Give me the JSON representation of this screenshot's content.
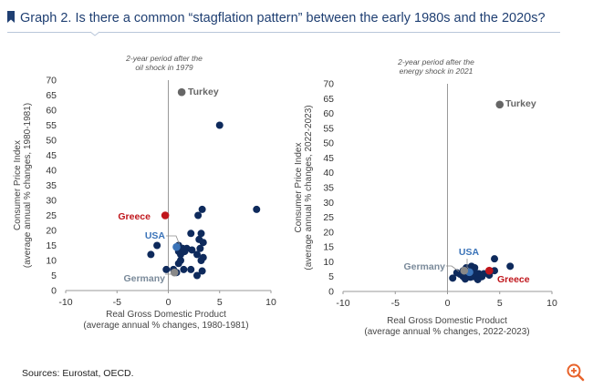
{
  "header": {
    "title": "Graph 2. Is there a common “stagflation pattern” between the early 1980s and the 2020s?",
    "accent_color": "#1f3f72"
  },
  "source": "Sources: Eurostat, OECD.",
  "zoom_icon": "zoom-in-icon",
  "colors": {
    "dot": "#0e2a5c",
    "usa": "#3a73b8",
    "greece": "#c0161c",
    "highlight_grey": "#6b6b6b",
    "axis": "#999999"
  },
  "chart_data": [
    {
      "type": "scatter",
      "annotation": [
        "2-year period after the",
        "oil shock in 1979"
      ],
      "ylabel": [
        "Consumer Price Index",
        "(average annual % changes, 1980-1981)"
      ],
      "xlabel": [
        "Real Gross Domestic Product",
        "(average annual % changes, 1980-1981)"
      ],
      "xlim": [
        -10,
        10
      ],
      "ylim": [
        0,
        70
      ],
      "xticks": [
        "-10",
        "-5",
        "0",
        "5",
        "10"
      ],
      "yticks": [
        "0",
        "5",
        "10",
        "15",
        "20",
        "25",
        "30",
        "35",
        "40",
        "45",
        "50",
        "55",
        "60",
        "65",
        "70"
      ],
      "points": [
        [
          5,
          55
        ],
        [
          8.6,
          27
        ],
        [
          3.3,
          27
        ],
        [
          2.9,
          25
        ],
        [
          3.2,
          19
        ],
        [
          2.2,
          19
        ],
        [
          3,
          17
        ],
        [
          3.4,
          16
        ],
        [
          1,
          15
        ],
        [
          1.8,
          14
        ],
        [
          -1.1,
          15
        ],
        [
          -1.7,
          12
        ],
        [
          2.3,
          13.5
        ],
        [
          3.1,
          14
        ],
        [
          2.8,
          12
        ],
        [
          3.4,
          11
        ],
        [
          1.2,
          12
        ],
        [
          1,
          9
        ],
        [
          1.5,
          7
        ],
        [
          3.2,
          10
        ],
        [
          2.2,
          7
        ],
        [
          -0.2,
          7
        ],
        [
          3.3,
          6.5
        ],
        [
          0.8,
          6
        ],
        [
          2.8,
          5
        ],
        [
          0.5,
          7
        ],
        [
          1,
          13
        ],
        [
          1.4,
          14
        ],
        [
          1.6,
          13
        ],
        [
          1.2,
          10
        ]
      ],
      "highlights": [
        {
          "label": "Turkey",
          "x": 1.3,
          "y": 66,
          "color": "#666666"
        },
        {
          "label": "Greece",
          "x": -0.3,
          "y": 25,
          "color": "#c0161c"
        },
        {
          "label": "USA",
          "x": 0.8,
          "y": 14.5,
          "color": "#3a73b8"
        },
        {
          "label": "Germany",
          "x": 0.6,
          "y": 6,
          "color": "#888888"
        }
      ]
    },
    {
      "type": "scatter",
      "annotation": [
        "2-year period after the",
        "energy shock in 2021"
      ],
      "ylabel": [
        "Consumer Price Index",
        "(average annual % changes, 2022-2023)"
      ],
      "xlabel": [
        "Real Gross Domestic Product",
        "(average annual % changes, 2022-2023)"
      ],
      "xlim": [
        -10,
        10
      ],
      "ylim": [
        0,
        70
      ],
      "xticks": [
        "-10",
        "-5",
        "0",
        "5",
        "10"
      ],
      "yticks": [
        "0",
        "5",
        "10",
        "15",
        "20",
        "25",
        "30",
        "35",
        "40",
        "45",
        "50",
        "55",
        "60",
        "65",
        "70"
      ],
      "points": [
        [
          6,
          8.5
        ],
        [
          4.5,
          11
        ],
        [
          2.3,
          8.5
        ],
        [
          2.6,
          8
        ],
        [
          1.5,
          7
        ],
        [
          3.5,
          6
        ],
        [
          2,
          5.5
        ],
        [
          1.5,
          5
        ],
        [
          2.5,
          5
        ],
        [
          2.9,
          4
        ],
        [
          0.5,
          4.5
        ],
        [
          3,
          6
        ],
        [
          4.5,
          7
        ],
        [
          2.1,
          6.2
        ],
        [
          1.8,
          8
        ],
        [
          2.4,
          7.2
        ],
        [
          1.2,
          5.8
        ],
        [
          3.3,
          5
        ],
        [
          4,
          5.5
        ],
        [
          1.7,
          4.2
        ],
        [
          2.6,
          6.6
        ],
        [
          0.9,
          6.3
        ],
        [
          2.2,
          4.8
        ]
      ],
      "highlights": [
        {
          "label": "Turkey",
          "x": 5,
          "y": 63,
          "color": "#666666"
        },
        {
          "label": "USA",
          "x": 2.1,
          "y": 6.5,
          "color": "#3a73b8"
        },
        {
          "label": "Germany",
          "x": 1.6,
          "y": 7,
          "color": "#888888"
        },
        {
          "label": "Greece",
          "x": 4,
          "y": 7,
          "color": "#c0161c"
        }
      ]
    }
  ]
}
